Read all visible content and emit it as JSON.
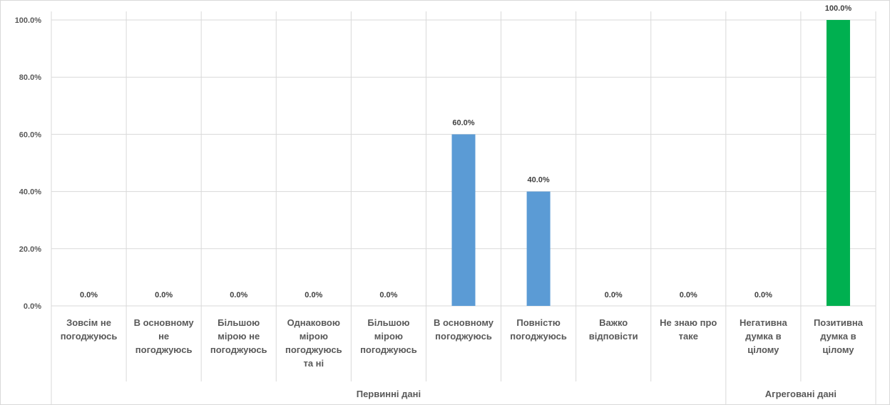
{
  "chart_data": {
    "type": "bar",
    "categories": [
      [
        "Зовсім не",
        "погоджуюсь"
      ],
      [
        "В основному",
        "не",
        "погоджуюсь"
      ],
      [
        "Більшою",
        "мірою не",
        "погоджуюсь"
      ],
      [
        "Однаковою",
        "мірою",
        "погоджуюсь",
        "та ні"
      ],
      [
        "Більшою",
        "мірою",
        "погоджуюсь"
      ],
      [
        "В основному",
        "погоджуюсь"
      ],
      [
        "Повністю",
        "погоджуюсь"
      ],
      [
        "Важко",
        "відповісти"
      ],
      [
        "Не знаю про",
        "таке"
      ],
      [
        "Негативна",
        "думка в",
        "цілому"
      ],
      [
        "Позитивна",
        "думка в",
        "цілому"
      ]
    ],
    "values": [
      0,
      0,
      0,
      0,
      0,
      60,
      40,
      0,
      0,
      0,
      100
    ],
    "value_labels": [
      "0.0%",
      "0.0%",
      "0.0%",
      "0.0%",
      "0.0%",
      "60.0%",
      "40.0%",
      "0.0%",
      "0.0%",
      "0.0%",
      "100.0%"
    ],
    "bar_colors": [
      "#5b9bd5",
      "#5b9bd5",
      "#5b9bd5",
      "#5b9bd5",
      "#5b9bd5",
      "#5b9bd5",
      "#5b9bd5",
      "#5b9bd5",
      "#5b9bd5",
      "#00b050",
      "#00b050"
    ],
    "groups": [
      {
        "label": "Первинні дані",
        "count": 9
      },
      {
        "label": "Агреговані дані",
        "count": 2
      }
    ],
    "y_ticks": [
      "0.0%",
      "20.0%",
      "40.0%",
      "60.0%",
      "80.0%",
      "100.0%"
    ],
    "ylim": [
      0,
      100
    ],
    "grid": true,
    "title": "",
    "xlabel": "",
    "ylabel": ""
  }
}
